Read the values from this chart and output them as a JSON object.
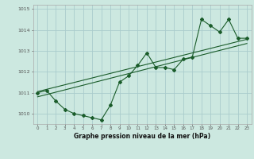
{
  "title": "Graphe pression niveau de la mer (hPa)",
  "background_color": "#cce8e0",
  "grid_color": "#aacccc",
  "line_color": "#1a5c2a",
  "spine_color": "#aaaaaa",
  "x_values": [
    0,
    1,
    2,
    3,
    4,
    5,
    6,
    7,
    8,
    9,
    10,
    11,
    12,
    13,
    14,
    15,
    16,
    17,
    18,
    19,
    20,
    21,
    22,
    23
  ],
  "y_values": [
    1011.0,
    1011.1,
    1010.6,
    1010.2,
    1010.0,
    1009.9,
    1009.8,
    1009.7,
    1010.4,
    1011.5,
    1011.8,
    1012.3,
    1012.9,
    1012.2,
    1012.2,
    1012.1,
    1012.6,
    1012.7,
    1014.5,
    1014.2,
    1013.9,
    1014.5,
    1013.6,
    1013.6
  ],
  "trend1_x": [
    0,
    23
  ],
  "trend1_y": [
    1011.05,
    1013.55
  ],
  "trend2_x": [
    0,
    23
  ],
  "trend2_y": [
    1010.8,
    1013.35
  ],
  "ylim_min": 1009.5,
  "ylim_max": 1015.2,
  "xlim_min": -0.5,
  "xlim_max": 23.5,
  "yticks": [
    1010,
    1011,
    1012,
    1013,
    1014,
    1015
  ],
  "xticks": [
    0,
    1,
    2,
    3,
    4,
    5,
    6,
    7,
    8,
    9,
    10,
    11,
    12,
    13,
    14,
    15,
    16,
    17,
    18,
    19,
    20,
    21,
    22,
    23
  ]
}
